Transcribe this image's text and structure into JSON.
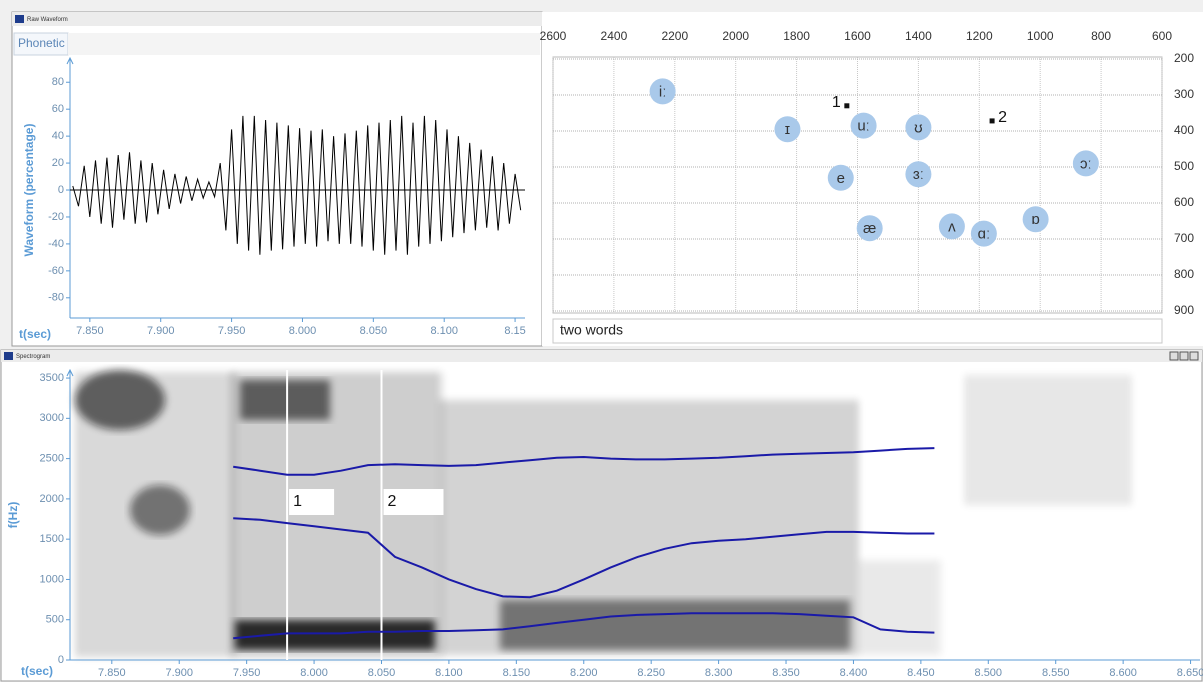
{
  "chart_data": [
    {
      "type": "line",
      "window_title": "Raw Waveform",
      "tab": "Phonetic",
      "xlabel": "t(sec)",
      "ylabel": "Waveform (percentage)",
      "color": "#000000",
      "xlim": [
        7.836,
        8.157
      ],
      "ylim": [
        -95,
        98
      ],
      "xticks": [
        {
          "value": 7.85,
          "label": "7.850"
        },
        {
          "value": 7.9,
          "label": "7.900"
        },
        {
          "value": 7.95,
          "label": "7.950"
        },
        {
          "value": 8.0,
          "label": "8.000"
        },
        {
          "value": 8.05,
          "label": "8.050"
        },
        {
          "value": 8.1,
          "label": "8.100"
        },
        8.15
      ],
      "yticks": [
        80,
        60,
        40,
        20,
        0,
        -20,
        -40,
        -60,
        -80
      ],
      "x": [
        7.838,
        7.842,
        7.846,
        7.85,
        7.854,
        7.858,
        7.862,
        7.866,
        7.87,
        7.874,
        7.878,
        7.882,
        7.886,
        7.89,
        7.894,
        7.898,
        7.902,
        7.906,
        7.91,
        7.914,
        7.918,
        7.922,
        7.926,
        7.93,
        7.934,
        7.938,
        7.942,
        7.946,
        7.95,
        7.954,
        7.958,
        7.962,
        7.966,
        7.97,
        7.974,
        7.978,
        7.982,
        7.986,
        7.99,
        7.994,
        7.998,
        8.002,
        8.006,
        8.01,
        8.014,
        8.018,
        8.022,
        8.026,
        8.03,
        8.034,
        8.038,
        8.042,
        8.046,
        8.05,
        8.054,
        8.058,
        8.062,
        8.066,
        8.07,
        8.074,
        8.078,
        8.082,
        8.086,
        8.09,
        8.094,
        8.098,
        8.102,
        8.106,
        8.11,
        8.114,
        8.118,
        8.122,
        8.126,
        8.13,
        8.134,
        8.138,
        8.142,
        8.146,
        8.15,
        8.154
      ],
      "values": [
        3,
        -12,
        18,
        -20,
        22,
        -25,
        24,
        -28,
        26,
        -22,
        28,
        -25,
        22,
        -24,
        20,
        -18,
        15,
        -14,
        12,
        -10,
        10,
        -8,
        8,
        -6,
        6,
        -5,
        20,
        -30,
        45,
        -40,
        55,
        -45,
        55,
        -48,
        52,
        -45,
        50,
        -44,
        48,
        -42,
        46,
        -40,
        44,
        -42,
        45,
        -38,
        40,
        -40,
        42,
        -40,
        44,
        -42,
        48,
        -45,
        50,
        -48,
        52,
        -45,
        55,
        -48,
        50,
        -42,
        55,
        -40,
        52,
        -38,
        45,
        -35,
        40,
        -32,
        35,
        -30,
        30,
        -28,
        25,
        -30,
        20,
        -25,
        12,
        -15
      ]
    },
    {
      "type": "scatter",
      "caption": "two words",
      "color": "#a9c9ea",
      "grid": true,
      "xlim": [
        2600,
        600
      ],
      "ylim": [
        200,
        900
      ],
      "xticks": [
        2600,
        2400,
        2200,
        2000,
        1800,
        1600,
        1400,
        1200,
        1000,
        800,
        600
      ],
      "yticks": [
        200,
        300,
        400,
        500,
        600,
        700,
        800,
        900
      ],
      "points": [
        {
          "label": "iː",
          "x": 2240,
          "y": 290
        },
        {
          "label": "ɪ",
          "x": 1830,
          "y": 395
        },
        {
          "label": "uː",
          "x": 1580,
          "y": 385
        },
        {
          "label": "ʊ",
          "x": 1400,
          "y": 390
        },
        {
          "label": "ɔː",
          "x": 850,
          "y": 490
        },
        {
          "label": "e",
          "x": 1655,
          "y": 530
        },
        {
          "label": "ɜː",
          "x": 1400,
          "y": 520
        },
        {
          "label": "æ",
          "x": 1560,
          "y": 670
        },
        {
          "label": "ʌ",
          "x": 1290,
          "y": 665
        },
        {
          "label": "ɑː",
          "x": 1185,
          "y": 685
        },
        {
          "label": "ɒ",
          "x": 1015,
          "y": 645
        }
      ],
      "measurements": [
        {
          "label": "1",
          "x": 1635,
          "y": 330
        },
        {
          "label": "2",
          "x": 1158,
          "y": 372
        }
      ]
    },
    {
      "type": "line",
      "window_title": "Spectrogram",
      "xlabel": "t(sec)",
      "ylabel": "f(Hz)",
      "xlim": [
        7.819,
        8.657
      ],
      "ylim": [
        0,
        3600
      ],
      "xticks": [
        {
          "value": 7.85,
          "label": "7.850"
        },
        {
          "value": 7.9,
          "label": "7.900"
        },
        {
          "value": 7.95,
          "label": "7.950"
        },
        {
          "value": 8.0,
          "label": "8.000"
        },
        {
          "value": 8.05,
          "label": "8.050"
        },
        {
          "value": 8.1,
          "label": "8.100"
        },
        {
          "value": 8.15,
          "label": "8.150"
        },
        {
          "value": 8.2,
          "label": "8.200"
        },
        {
          "value": 8.25,
          "label": "8.250"
        },
        {
          "value": 8.3,
          "label": "8.300"
        },
        {
          "value": 8.35,
          "label": "8.350"
        },
        {
          "value": 8.4,
          "label": "8.400"
        },
        {
          "value": 8.45,
          "label": "8.450"
        },
        {
          "value": 8.5,
          "label": "8.500"
        },
        {
          "value": 8.55,
          "label": "8.550"
        },
        {
          "value": 8.6,
          "label": "8.600"
        },
        {
          "value": 8.65,
          "label": "8.650"
        }
      ],
      "yticks": [
        0,
        500,
        1000,
        1500,
        2000,
        2500,
        3000,
        3500
      ],
      "cursors": [
        {
          "label": "1",
          "x": 7.98
        },
        {
          "label": "2",
          "x": 8.05
        }
      ],
      "x": [
        7.94,
        7.96,
        7.98,
        8.0,
        8.02,
        8.04,
        8.06,
        8.08,
        8.1,
        8.12,
        8.14,
        8.16,
        8.18,
        8.2,
        8.22,
        8.24,
        8.26,
        8.28,
        8.3,
        8.32,
        8.34,
        8.36,
        8.38,
        8.4,
        8.42,
        8.44,
        8.46
      ],
      "series": [
        {
          "color": "#1a1aa8",
          "values": [
            2400,
            2350,
            2300,
            2300,
            2350,
            2420,
            2430,
            2420,
            2410,
            2420,
            2450,
            2480,
            2510,
            2520,
            2500,
            2490,
            2490,
            2500,
            2510,
            2530,
            2550,
            2560,
            2570,
            2580,
            2600,
            2620,
            2630
          ]
        },
        {
          "color": "#1a1aa8",
          "values": [
            1760,
            1740,
            1700,
            1660,
            1620,
            1580,
            1280,
            1150,
            1000,
            880,
            790,
            780,
            860,
            1000,
            1150,
            1280,
            1380,
            1450,
            1480,
            1500,
            1530,
            1560,
            1590,
            1590,
            1580,
            1570,
            1570
          ]
        },
        {
          "color": "#1a1aa8",
          "values": [
            270,
            300,
            330,
            330,
            330,
            350,
            350,
            360,
            360,
            370,
            380,
            420,
            460,
            500,
            540,
            560,
            570,
            580,
            580,
            580,
            580,
            570,
            550,
            530,
            380,
            350,
            340
          ]
        }
      ]
    }
  ]
}
